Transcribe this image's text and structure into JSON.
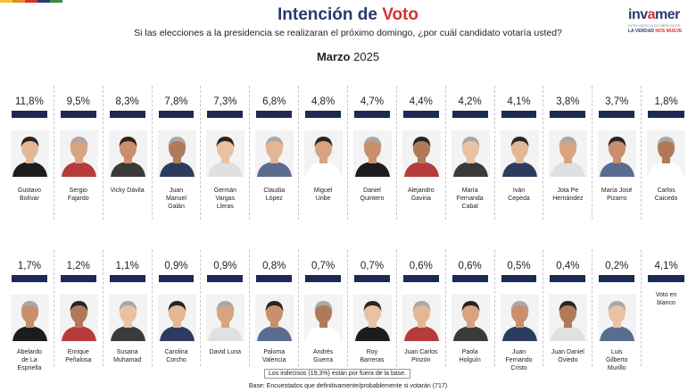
{
  "header": {
    "title_main": "Intención de",
    "title_accent": "Voto",
    "question": "Si las elecciones a la presidencia se realizaran el próximo domingo, ¿por cuál candidato votaría usted?",
    "period_month": "Marzo",
    "period_year": "2025"
  },
  "logo": {
    "brand_a": "inv",
    "brand_y": "a",
    "brand_b": "mer",
    "sub": "INTELIGENCIA DE MERCADOS",
    "tag_a": "LA VERDAD",
    "tag_b": "NOS MUEVE"
  },
  "colors": {
    "bar": "#1d2a55",
    "title": "#2a3a6e",
    "accent": "#d6332f",
    "stripe": [
      "#f2c22e",
      "#e38a2a",
      "#d6332f",
      "#2a3a6e",
      "#3a8a4a"
    ]
  },
  "chart_data": {
    "type": "bar",
    "title": "Intención de Voto",
    "subtitle": "Marzo 2025",
    "unit": "%",
    "rows": [
      {
        "categories": [
          "Gustavo Bolívar",
          "Sergio Fajardo",
          "Vicky Dávila",
          "Juan Manuel Galán",
          "Germán Vargas Lleras",
          "Claudia López",
          "Miguel Uribe",
          "Daniel Quintero",
          "Alejandro Gaviria",
          "María Fernanda Cabal",
          "Iván Cepeda",
          "Jota Pe Hernández",
          "María José Pizarro",
          "Carlos Caicedo"
        ],
        "values": [
          11.8,
          9.5,
          8.3,
          7.8,
          7.3,
          6.8,
          4.8,
          4.7,
          4.4,
          4.2,
          4.1,
          3.8,
          3.7,
          1.8
        ],
        "labels": [
          "11,8%",
          "9,5%",
          "8,3%",
          "7,8%",
          "7,3%",
          "6,8%",
          "4,8%",
          "4,7%",
          "4,4%",
          "4,2%",
          "4,1%",
          "3,8%",
          "3,7%",
          "1,8%"
        ],
        "names": [
          [
            "Gustavo",
            "Bolívar"
          ],
          [
            "Sergio",
            "Fajardo"
          ],
          [
            "Vicky Dávila"
          ],
          [
            "Juan",
            "Manuel",
            "Galán"
          ],
          [
            "Germán",
            "Vargas",
            "Lleras"
          ],
          [
            "Claudia",
            "López"
          ],
          [
            "Miguel",
            "Uribe"
          ],
          [
            "Daniel",
            "Quintero"
          ],
          [
            "Alejandro",
            "Gaviria"
          ],
          [
            "María",
            "Fernanda",
            "Cabal"
          ],
          [
            "Iván",
            "Cepeda"
          ],
          [
            "Jota Pe",
            "Hernández"
          ],
          [
            "María José",
            "Pizarro"
          ],
          [
            "Carlos",
            "Caicedo"
          ]
        ]
      },
      {
        "categories": [
          "Abelardo de La Espriella",
          "Enrique Peñalosa",
          "Susana Muhamad",
          "Carolina Corcho",
          "David Luna",
          "Paloma Valencia",
          "Andrés Guerra",
          "Roy Barreras",
          "Juan Carlos Pinzón",
          "Paola Holguín",
          "Juan Fernando Cristo",
          "Juan Daniel Oviedo",
          "Luis Gilberto Murillo",
          "Voto en blanco"
        ],
        "values": [
          1.7,
          1.2,
          1.1,
          0.9,
          0.9,
          0.8,
          0.7,
          0.7,
          0.6,
          0.6,
          0.5,
          0.4,
          0.2,
          4.1
        ],
        "labels": [
          "1,7%",
          "1,2%",
          "1,1%",
          "0,9%",
          "0,9%",
          "0,8%",
          "0,7%",
          "0,7%",
          "0,6%",
          "0,6%",
          "0,5%",
          "0,4%",
          "0,2%",
          "4,1%"
        ],
        "names": [
          [
            "Abelardo",
            "de La",
            "Espriella"
          ],
          [
            "Enrique",
            "Peñalosa"
          ],
          [
            "Susana",
            "Muhamad"
          ],
          [
            "Carolina",
            "Corcho"
          ],
          [
            "David Luna"
          ],
          [
            "Paloma",
            "Valencia"
          ],
          [
            "Andrés",
            "Guerra"
          ],
          [
            "Roy",
            "Barreras"
          ],
          [
            "Juan Carlos",
            "Pinzón"
          ],
          [
            "Paola",
            "Holguín"
          ],
          [
            "Juan",
            "Fernando",
            "Cristo"
          ],
          [
            "Juan Daniel",
            "Oviedo"
          ],
          [
            "Luis",
            "Gilberto",
            "Murillo"
          ],
          [
            "Voto en",
            "blanco"
          ]
        ]
      }
    ]
  },
  "footer": {
    "note": "Los indecisos (19,3%) están por fuera de la base.",
    "base": "Base: Encuestados que definitivamente/probablemente si votarán (717)"
  }
}
